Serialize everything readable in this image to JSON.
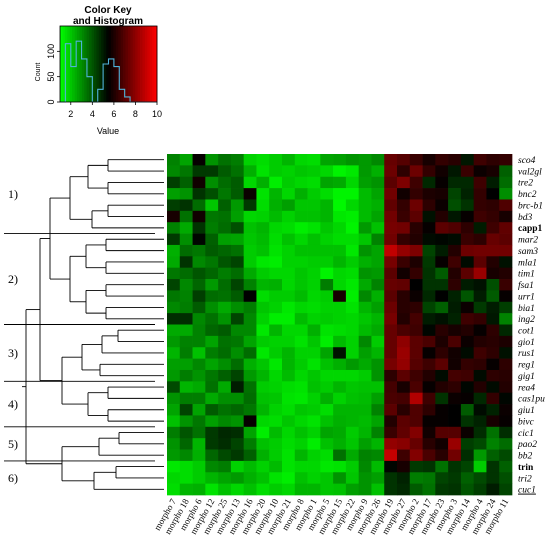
{
  "chart_data": {
    "type": "heatmap",
    "key": {
      "title_line1": "Color Key",
      "title_line2": "and Histogram",
      "ylabel": "Count",
      "xlabel": "Value",
      "x_ticks": [
        "2",
        "4",
        "6",
        "8",
        "10"
      ],
      "y_ticks": [
        "0",
        "50",
        "100"
      ],
      "range": [
        1,
        10
      ],
      "histogram_counts": [
        0,
        115,
        70,
        120,
        85,
        50,
        0,
        25,
        75,
        85,
        70,
        25,
        10,
        0,
        0,
        0,
        0,
        0
      ]
    },
    "colors": {
      "low": "#00ff00",
      "mid": "#000000",
      "high": "#ff0000",
      "dendrogram": "#000000",
      "histogram": "#4fb3d9"
    },
    "rows": [
      "sco4",
      "val2gl",
      "tre2",
      "bnc2",
      "brc-b1",
      "bd3",
      "capp1",
      "mar2",
      "sam3",
      "mla1",
      "tim1",
      "fsa1",
      "urr1",
      "bia1",
      "ing2",
      "cot1",
      "gio1",
      "rus1",
      "reg1",
      "gig1",
      "rea4",
      "cas1pu",
      "giu1",
      "bivc",
      "cic1",
      "pao2",
      "bb2",
      "trin",
      "tri2",
      "cuc1"
    ],
    "bold_rows": [
      "capp1",
      "trin"
    ],
    "underlined_rows": [
      "cuc1"
    ],
    "columns": [
      "morpho 7",
      "morpho 18",
      "morpho 6",
      "morpho 12",
      "morpho 25",
      "morpho 13",
      "morpho 16",
      "morpho 20",
      "morpho 10",
      "morpho 21",
      "morpho 8",
      "morpho 1",
      "morpho 5",
      "morpho 15",
      "morpho 22",
      "morpho 9",
      "morpho 26",
      "morpho 19",
      "morpho 27",
      "morpho 2",
      "morpho 17",
      "morpho 23",
      "morpho 3",
      "morpho 14",
      "morpho 4",
      "morpho 24",
      "morpho 11"
    ],
    "clusters": [
      {
        "label": "1)",
        "rows": [
          0,
          6
        ]
      },
      {
        "label": "2)",
        "rows": [
          7,
          14
        ]
      },
      {
        "label": "3)",
        "rows": [
          15,
          19
        ]
      },
      {
        "label": "4)",
        "rows": [
          20,
          23
        ]
      },
      {
        "label": "5)",
        "rows": [
          24,
          26
        ]
      },
      {
        "label": "6)",
        "rows": [
          27,
          29
        ]
      }
    ],
    "values": [
      [
        3.2,
        2.6,
        5.6,
        2.9,
        3.5,
        3.3,
        1.8,
        1.6,
        1.9,
        2.3,
        1.7,
        1.6,
        2.6,
        2.7,
        2.9,
        2.8,
        3.1,
        7.3,
        7.0,
        6.5,
        5.9,
        6.4,
        6.2,
        5.1,
        6.6,
        6.3,
        6.4
      ],
      [
        3.1,
        3.4,
        4.5,
        4.5,
        3.9,
        3.5,
        2.4,
        1.5,
        1.9,
        1.8,
        2.0,
        1.9,
        1.7,
        1.2,
        1.4,
        2.8,
        2.4,
        7.4,
        6.3,
        7.4,
        6.4,
        5.8,
        5.1,
        6.5,
        5.7,
        5.9,
        3.8
      ],
      [
        4.4,
        3.8,
        5.8,
        3.0,
        3.6,
        3.9,
        1.7,
        2.4,
        1.3,
        1.9,
        1.7,
        1.6,
        2.6,
        2.5,
        1.7,
        2.7,
        2.9,
        7.1,
        7.7,
        6.6,
        4.8,
        5.6,
        4.8,
        4.8,
        6.6,
        5.0,
        3.6
      ],
      [
        2.7,
        2.9,
        4.6,
        4.1,
        3.4,
        3.9,
        5.7,
        1.5,
        2.3,
        1.7,
        2.4,
        1.9,
        1.6,
        1.2,
        1.2,
        2.2,
        2.6,
        7.5,
        5.8,
        6.4,
        6.0,
        5.9,
        4.3,
        4.9,
        6.4,
        5.5,
        3.0
      ],
      [
        4.4,
        4.6,
        3.6,
        2.0,
        3.8,
        2.8,
        4.5,
        1.6,
        2.4,
        2.7,
        2.0,
        2.0,
        2.3,
        1.1,
        1.7,
        2.2,
        2.4,
        7.2,
        6.4,
        7.4,
        6.3,
        5.7,
        4.1,
        4.6,
        6.4,
        6.3,
        6.9
      ],
      [
        5.9,
        3.5,
        5.8,
        3.4,
        3.5,
        2.7,
        1.7,
        1.8,
        2.2,
        1.8,
        2.1,
        2.1,
        2.3,
        1.4,
        1.3,
        2.2,
        2.6,
        7.5,
        6.5,
        7.1,
        5.2,
        6.1,
        5.1,
        5.6,
        6.6,
        6.4,
        5.9
      ],
      [
        3.2,
        2.5,
        4.6,
        3.3,
        3.6,
        4.1,
        2.1,
        2.3,
        1.7,
        1.6,
        1.3,
        1.5,
        2.0,
        1.7,
        1.2,
        2.8,
        2.1,
        7.6,
        7.5,
        6.2,
        5.6,
        7.1,
        6.9,
        6.3,
        5.0,
        6.6,
        7.2
      ],
      [
        4.5,
        3.0,
        5.4,
        3.8,
        2.7,
        2.6,
        2.0,
        2.2,
        1.6,
        2.1,
        1.7,
        2.1,
        1.8,
        1.6,
        1.6,
        2.0,
        3.2,
        7.5,
        6.4,
        6.1,
        5.3,
        5.4,
        5.3,
        6.5,
        6.3,
        7.3,
        7.1
      ],
      [
        2.4,
        3.6,
        3.4,
        3.9,
        3.7,
        3.5,
        1.9,
        2.1,
        1.5,
        1.8,
        2.1,
        2.1,
        2.1,
        2.1,
        1.4,
        2.9,
        2.6,
        8.9,
        8.1,
        7.7,
        4.3,
        5.0,
        6.1,
        7.4,
        7.5,
        7.5,
        7.5
      ],
      [
        2.5,
        4.6,
        3.1,
        3.4,
        4.0,
        4.3,
        1.9,
        1.4,
        1.3,
        1.8,
        1.8,
        1.9,
        1.9,
        2.3,
        1.9,
        2.4,
        2.6,
        7.6,
        6.5,
        6.0,
        4.5,
        5.6,
        6.6,
        5.3,
        7.1,
        6.1,
        5.2
      ],
      [
        3.4,
        3.6,
        4.0,
        3.7,
        3.3,
        3.6,
        2.5,
        1.9,
        1.7,
        1.7,
        2.0,
        1.8,
        1.2,
        1.7,
        1.6,
        2.9,
        2.8,
        7.1,
        5.8,
        6.4,
        4.6,
        3.9,
        6.1,
        7.1,
        8.2,
        5.9,
        6.1
      ],
      [
        4.3,
        3.1,
        3.7,
        2.8,
        3.6,
        4.3,
        3.2,
        2.3,
        2.4,
        1.7,
        2.0,
        1.8,
        3.3,
        1.7,
        1.4,
        2.5,
        3.2,
        7.3,
        7.2,
        5.5,
        4.6,
        4.6,
        6.3,
        5.0,
        5.2,
        4.1,
        6.5
      ],
      [
        3.4,
        3.2,
        4.4,
        3.6,
        3.5,
        3.9,
        5.5,
        1.6,
        1.9,
        1.9,
        2.2,
        1.7,
        1.9,
        5.9,
        1.3,
        3.1,
        2.4,
        7.1,
        6.2,
        5.7,
        4.8,
        5.5,
        4.9,
        4.0,
        5.0,
        3.9,
        5.6
      ],
      [
        3.1,
        3.3,
        3.9,
        3.0,
        2.5,
        3.0,
        3.3,
        2.0,
        1.8,
        1.4,
        1.7,
        1.6,
        1.8,
        1.8,
        1.5,
        2.3,
        2.7,
        7.4,
        6.2,
        6.3,
        4.3,
        3.8,
        5.0,
        5.7,
        4.5,
        5.0,
        4.4
      ],
      [
        4.7,
        4.7,
        3.1,
        3.5,
        2.9,
        4.3,
        3.1,
        1.8,
        1.3,
        1.3,
        2.2,
        1.8,
        1.9,
        1.8,
        1.7,
        2.0,
        2.3,
        7.6,
        6.1,
        6.7,
        5.0,
        5.2,
        4.9,
        6.6,
        6.4,
        5.1,
        3.2
      ],
      [
        2.5,
        2.5,
        3.2,
        3.7,
        3.9,
        3.1,
        3.1,
        1.4,
        2.3,
        1.7,
        1.7,
        2.4,
        1.5,
        1.6,
        1.7,
        2.2,
        2.5,
        7.3,
        6.8,
        6.6,
        5.4,
        6.2,
        5.9,
        6.1,
        5.6,
        6.3,
        4.8
      ],
      [
        2.8,
        3.2,
        3.2,
        2.6,
        3.5,
        3.4,
        2.6,
        1.9,
        1.8,
        1.8,
        1.5,
        2.0,
        1.3,
        2.2,
        1.8,
        3.1,
        1.9,
        7.3,
        8.0,
        7.1,
        6.8,
        6.0,
        6.8,
        5.7,
        6.1,
        6.2,
        6.0
      ],
      [
        2.3,
        3.3,
        2.1,
        3.3,
        3.6,
        3.0,
        3.6,
        1.4,
        1.9,
        2.3,
        1.8,
        1.8,
        2.6,
        5.2,
        1.8,
        2.7,
        2.3,
        7.3,
        8.2,
        7.1,
        5.6,
        6.3,
        5.8,
        5.3,
        6.6,
        6.3,
        5.2
      ],
      [
        2.7,
        2.7,
        3.1,
        2.6,
        3.0,
        3.6,
        2.4,
        2.0,
        1.4,
        2.3,
        1.9,
        1.5,
        2.1,
        2.4,
        2.8,
        2.5,
        2.9,
        7.6,
        8.1,
        7.0,
        6.6,
        7.1,
        5.8,
        6.4,
        6.3,
        5.6,
        6.3
      ],
      [
        2.8,
        3.3,
        2.9,
        3.4,
        3.8,
        4.3,
        2.8,
        2.3,
        1.7,
        2.2,
        1.7,
        2.0,
        1.7,
        1.7,
        1.7,
        1.9,
        2.9,
        6.3,
        7.1,
        6.6,
        6.1,
        5.3,
        6.7,
        6.6,
        5.3,
        6.3,
        6.2
      ],
      [
        4.2,
        2.3,
        2.5,
        3.5,
        2.5,
        5.0,
        3.5,
        1.9,
        1.8,
        1.6,
        1.5,
        2.1,
        1.9,
        2.3,
        2.0,
        2.1,
        2.1,
        6.7,
        5.9,
        6.8,
        5.6,
        6.1,
        6.3,
        5.4,
        6.1,
        5.3,
        6.1
      ],
      [
        2.9,
        3.3,
        3.3,
        2.5,
        3.0,
        3.0,
        3.6,
        2.1,
        2.0,
        1.5,
        1.4,
        1.8,
        2.4,
        1.8,
        2.1,
        2.2,
        2.7,
        6.8,
        6.7,
        8.6,
        6.6,
        4.6,
        5.7,
        5.6,
        4.8,
        6.4,
        5.4
      ],
      [
        2.6,
        4.3,
        2.6,
        3.9,
        3.5,
        3.7,
        3.4,
        2.3,
        1.8,
        1.6,
        2.0,
        1.9,
        1.6,
        2.3,
        2.3,
        2.3,
        3.2,
        7.1,
        6.2,
        6.9,
        6.3,
        5.6,
        5.5,
        3.9,
        5.3,
        4.9,
        5.7
      ],
      [
        2.1,
        2.9,
        3.4,
        2.7,
        3.1,
        2.9,
        5.6,
        1.7,
        1.6,
        2.0,
        1.7,
        1.5,
        2.1,
        2.4,
        2.3,
        2.2,
        2.6,
        6.1,
        7.1,
        6.9,
        5.6,
        5.6,
        5.5,
        4.6,
        4.9,
        5.9,
        5.6
      ],
      [
        3.3,
        4.0,
        3.5,
        4.5,
        4.8,
        4.7,
        2.6,
        1.3,
        2.2,
        1.7,
        2.1,
        1.8,
        2.6,
        2.5,
        1.9,
        2.3,
        3.2,
        6.5,
        7.2,
        7.8,
        5.8,
        7.0,
        7.0,
        5.7,
        4.7,
        3.5,
        4.7
      ],
      [
        2.9,
        3.7,
        2.3,
        4.5,
        4.7,
        4.3,
        3.3,
        2.1,
        1.9,
        1.6,
        1.8,
        1.3,
        2.1,
        2.4,
        2.0,
        2.7,
        2.3,
        8.1,
        7.9,
        7.3,
        6.2,
        5.8,
        8.2,
        4.4,
        4.2,
        3.2,
        3.6
      ],
      [
        2.8,
        3.1,
        2.4,
        3.7,
        4.2,
        4.5,
        3.8,
        2.4,
        1.9,
        1.5,
        2.3,
        1.8,
        1.6,
        3.5,
        2.5,
        3.2,
        3.1,
        9.0,
        6.6,
        7.8,
        6.8,
        6.2,
        7.5,
        4.7,
        2.8,
        3.8,
        4.2
      ],
      [
        1.4,
        1.6,
        1.9,
        3.1,
        3.3,
        1.8,
        2.2,
        1.8,
        2.2,
        1.5,
        1.7,
        1.7,
        1.4,
        1.5,
        1.9,
        3.1,
        2.2,
        5.4,
        5.9,
        4.5,
        4.6,
        3.5,
        4.6,
        4.3,
        1.9,
        4.6,
        3.8
      ],
      [
        1.7,
        1.6,
        1.9,
        2.3,
        2.6,
        2.8,
        2.4,
        2.1,
        1.5,
        1.3,
        2.1,
        1.8,
        2.0,
        2.9,
        2.0,
        2.9,
        2.7,
        4.6,
        4.9,
        3.3,
        3.4,
        4.3,
        4.5,
        3.8,
        4.2,
        4.6,
        4.1
      ],
      [
        1.6,
        2.3,
        2.4,
        1.5,
        2.1,
        1.7,
        2.1,
        1.6,
        1.9,
        1.7,
        2.3,
        2.3,
        2.0,
        2.1,
        2.7,
        2.9,
        2.1,
        4.6,
        4.8,
        3.9,
        3.5,
        4.5,
        4.6,
        4.0,
        4.4,
        5.0,
        4.3
      ]
    ]
  }
}
